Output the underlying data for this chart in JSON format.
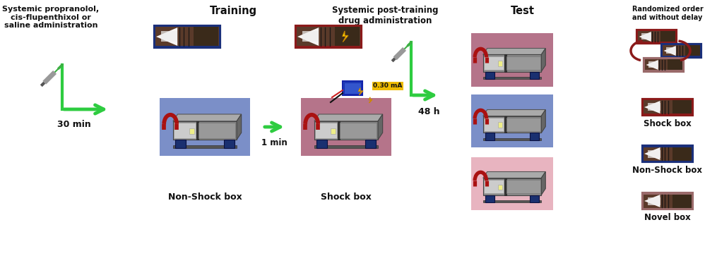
{
  "bg_color": "#ffffff",
  "non_shock_bg": "#7b8fc8",
  "shock_bg": "#b5748a",
  "novel_bg": "#e8b4c0",
  "arrow_color": "#2ecc40",
  "dark_red": "#8b1a1a",
  "dark_blue": "#1a2f7a",
  "yellow": "#f5e642",
  "gold": "#ddaa00",
  "labels": {
    "title_left": "Systemic propranolol,\ncis-flupenthixol or\nsaline administration",
    "training": "Training",
    "post_training": "Systemic post-training\ndrug administration",
    "test": "Test",
    "non_shock": "Non-Shock box",
    "shock_lbl": "Shock box",
    "time_30": "30 min",
    "time_1": "1 min",
    "time_48": "48 h",
    "current": "0.30 mA",
    "randomized": "Randomized order\nand without delay",
    "shock_box_label": "Shock box",
    "non_shock_box_label": "Non-Shock box",
    "novel_box_label": "Novel box"
  }
}
